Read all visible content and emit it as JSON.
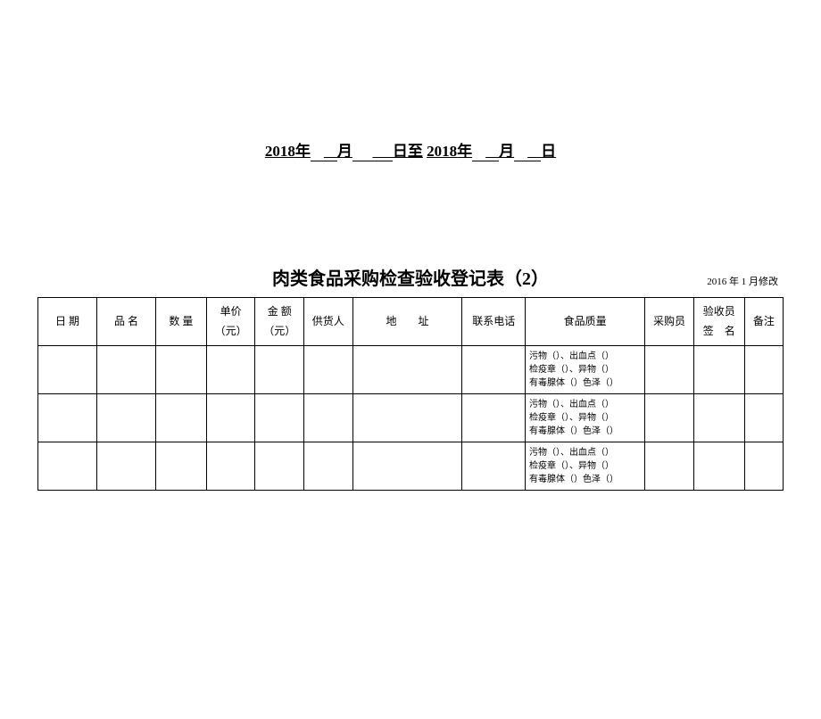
{
  "dateRange": {
    "year1": "2018",
    "yearUnit": "年",
    "monthUnit": "月",
    "dayUnit": "日",
    "to": "至",
    "year2": "2018"
  },
  "title": "肉类食品采购检查验收登记表（2）",
  "revisionNote": "2016 年 1 月修改",
  "columns": {
    "date": "日 期",
    "name": "品 名",
    "qty": "数 量",
    "priceLine1": "单价",
    "priceLine2": "（元）",
    "amountLine1": "金 额",
    "amountLine2": "（元）",
    "supplier": "供货人",
    "address": "地　　址",
    "phone": "联系电话",
    "quality": "食品质量",
    "purchaser": "采购员",
    "inspectorLine1": "验收员",
    "inspectorLine2": "签　名",
    "remark": "备注"
  },
  "qualityTemplate": {
    "line1": "污物（）、出血点（）",
    "line2": "检疫章（）、异物（）",
    "line3": "有毒腺体（）色泽（）"
  },
  "rowCount": 3
}
